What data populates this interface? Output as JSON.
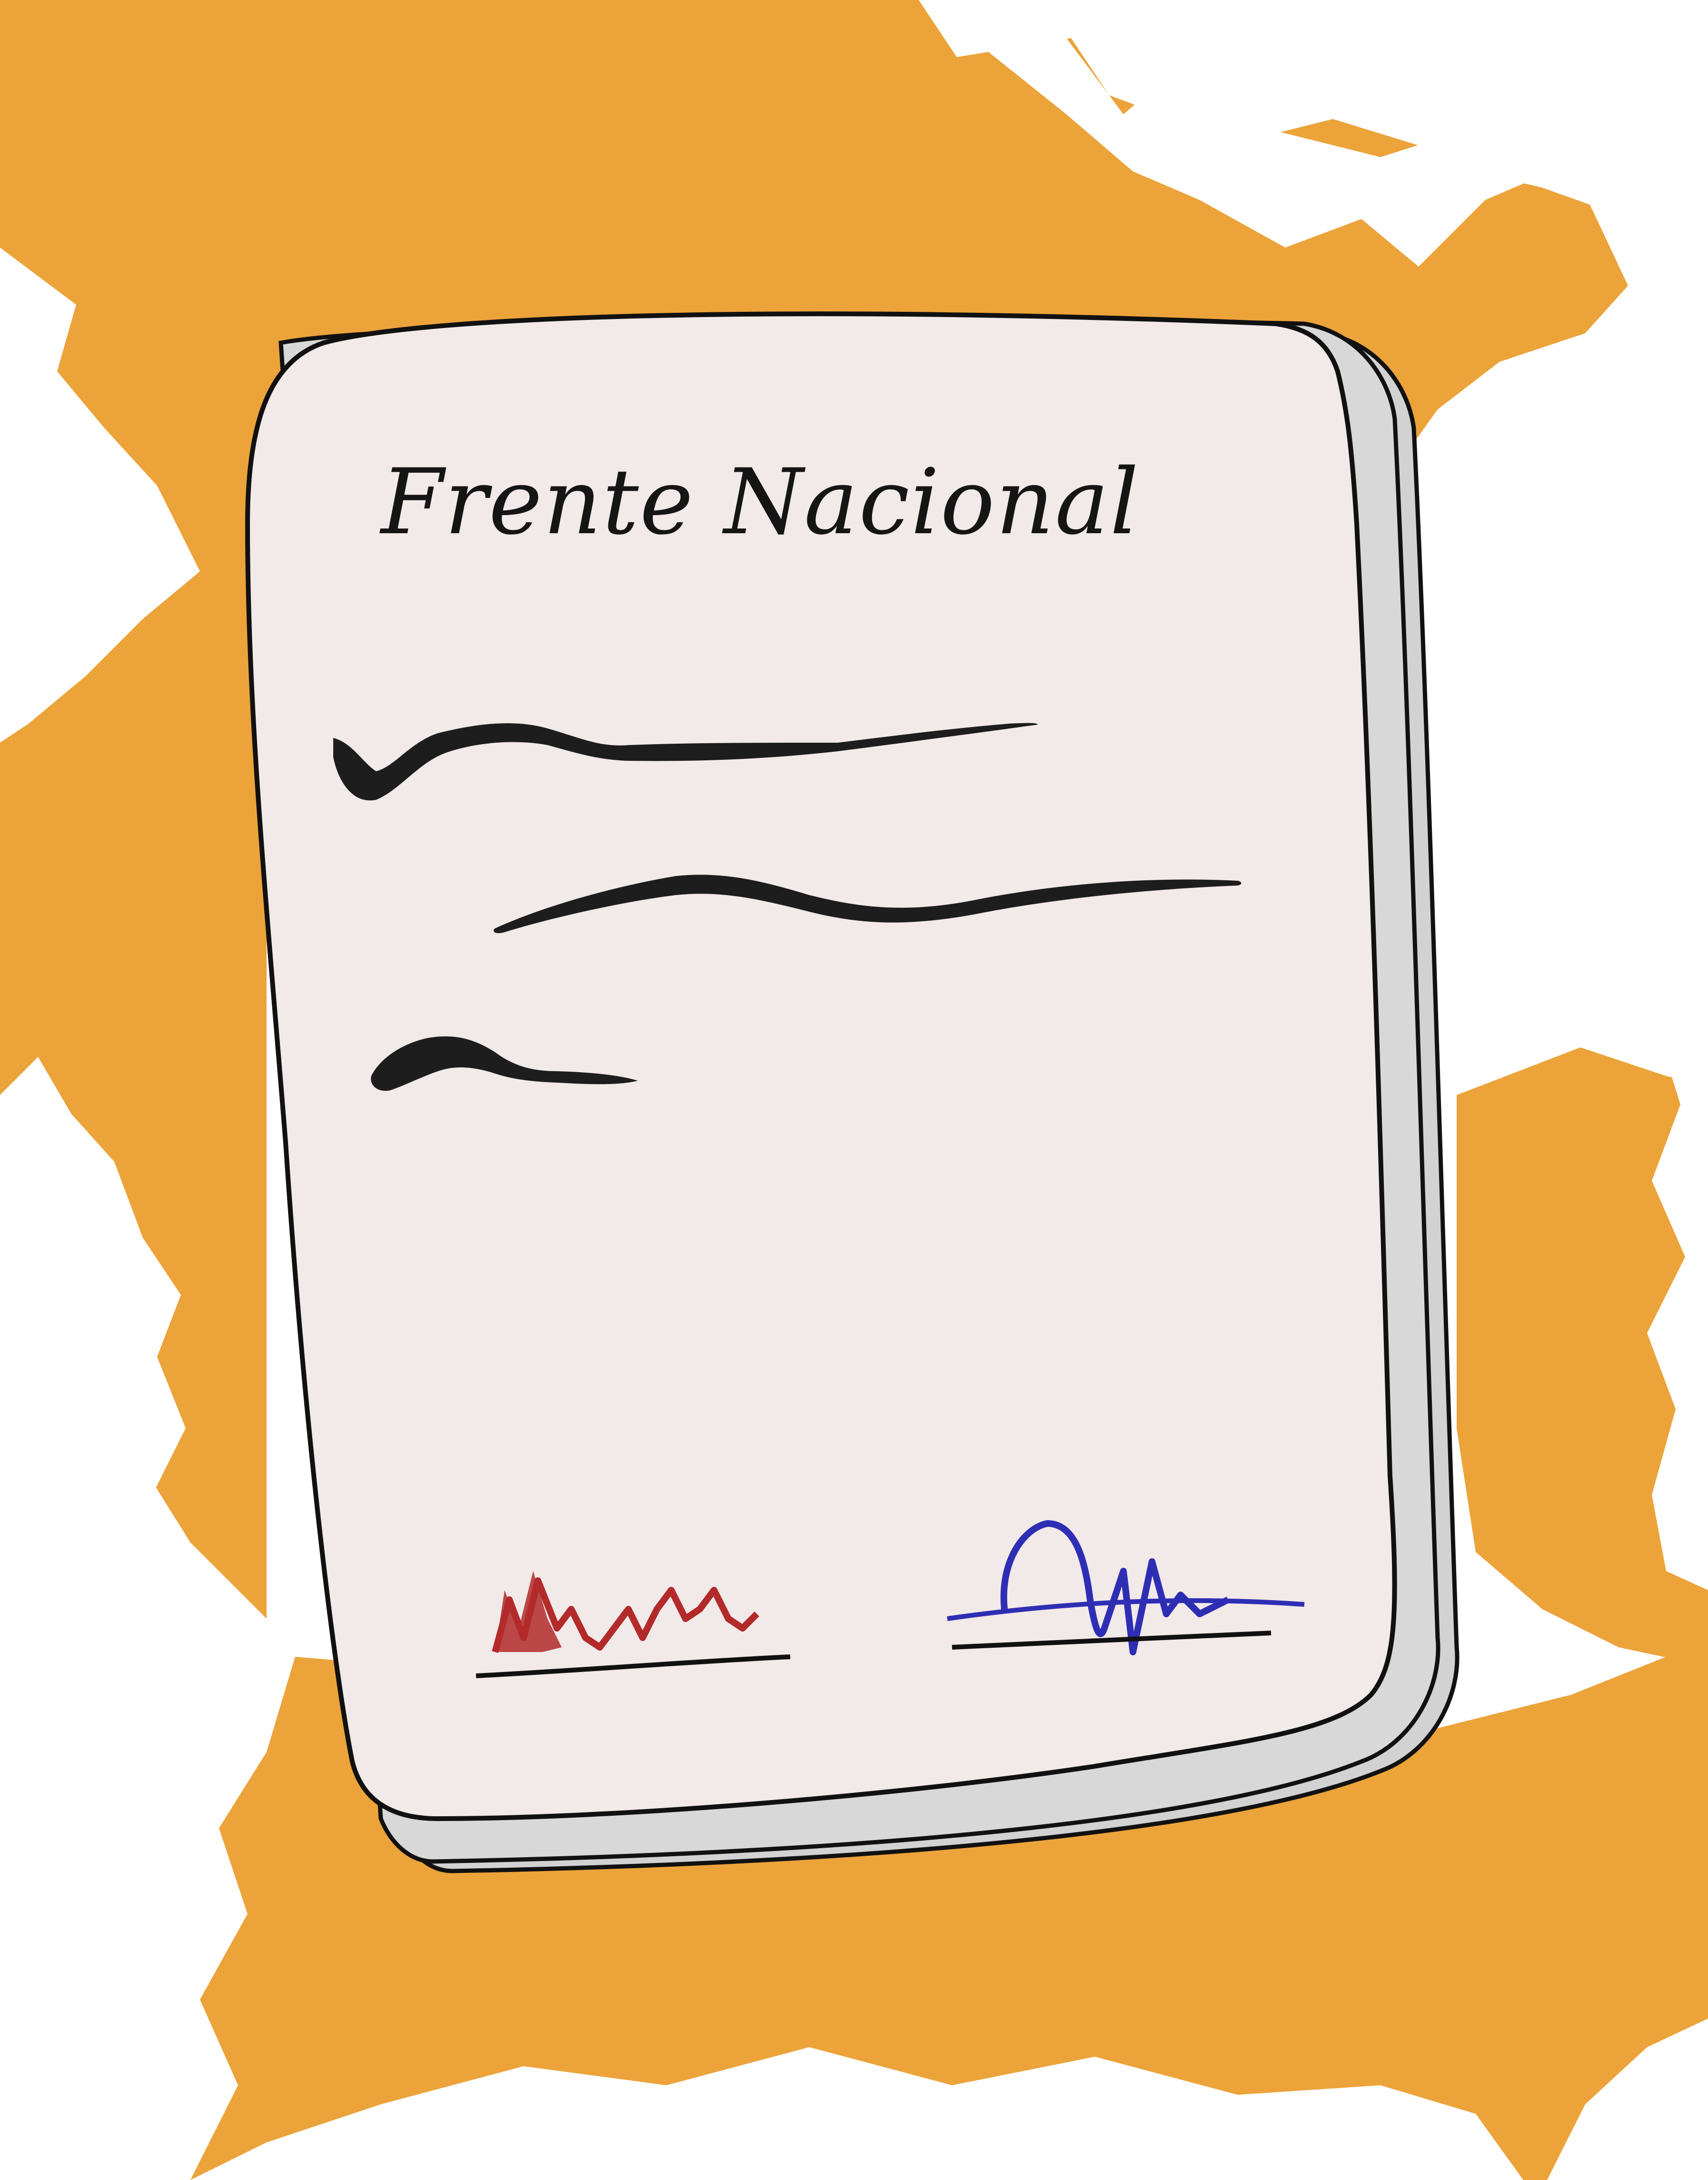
{
  "document": {
    "title": "Frente Nacional"
  },
  "colors": {
    "background": "#ffffff",
    "paint_splash": "#eca33a",
    "paper": "#f2e9e9",
    "page_edges": "#d2d2d2",
    "outline": "#111111",
    "scribble_ink": "#1d1d1d",
    "signature_left": "#b22a2a",
    "signature_right": "#2e2eb4"
  },
  "icons": {
    "paint_splash": "orange-brush-splash",
    "document": "paper-document-stack"
  }
}
